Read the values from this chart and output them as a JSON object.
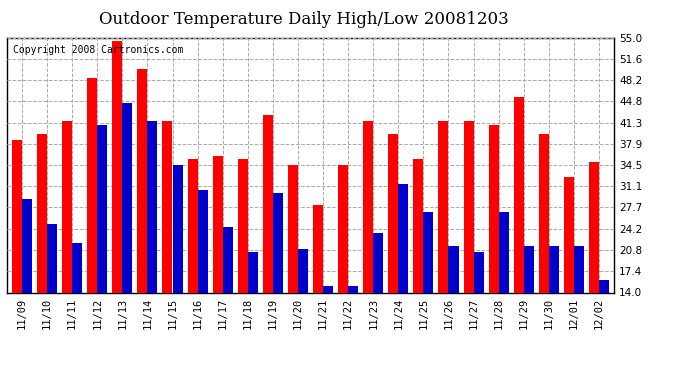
{
  "title": "Outdoor Temperature Daily High/Low 20081203",
  "copyright": "Copyright 2008 Cartronics.com",
  "dates": [
    "11/09",
    "11/10",
    "11/11",
    "11/12",
    "11/13",
    "11/14",
    "11/15",
    "11/16",
    "11/17",
    "11/18",
    "11/19",
    "11/20",
    "11/21",
    "11/22",
    "11/23",
    "11/24",
    "11/25",
    "11/26",
    "11/27",
    "11/28",
    "11/29",
    "11/30",
    "12/01",
    "12/02"
  ],
  "highs": [
    38.5,
    39.5,
    41.5,
    48.5,
    54.5,
    50.0,
    41.5,
    35.5,
    36.0,
    35.5,
    42.5,
    34.5,
    28.0,
    34.5,
    41.5,
    39.5,
    35.5,
    41.5,
    41.5,
    41.0,
    45.5,
    39.5,
    32.5,
    35.0
  ],
  "lows": [
    29.0,
    25.0,
    22.0,
    41.0,
    44.5,
    41.5,
    34.5,
    30.5,
    24.5,
    20.5,
    30.0,
    21.0,
    15.0,
    15.0,
    23.5,
    31.5,
    27.0,
    21.5,
    20.5,
    27.0,
    21.5,
    21.5,
    21.5,
    16.0
  ],
  "high_color": "#ff0000",
  "low_color": "#0000cc",
  "bar_width": 0.4,
  "ylim": [
    14.0,
    55.0
  ],
  "yticks": [
    14.0,
    17.4,
    20.8,
    24.2,
    27.7,
    31.1,
    34.5,
    37.9,
    41.3,
    44.8,
    48.2,
    51.6,
    55.0
  ],
  "grid_color": "#aaaaaa",
  "bg_color": "#ffffff",
  "title_fontsize": 12,
  "tick_fontsize": 7.5,
  "copyright_fontsize": 7
}
